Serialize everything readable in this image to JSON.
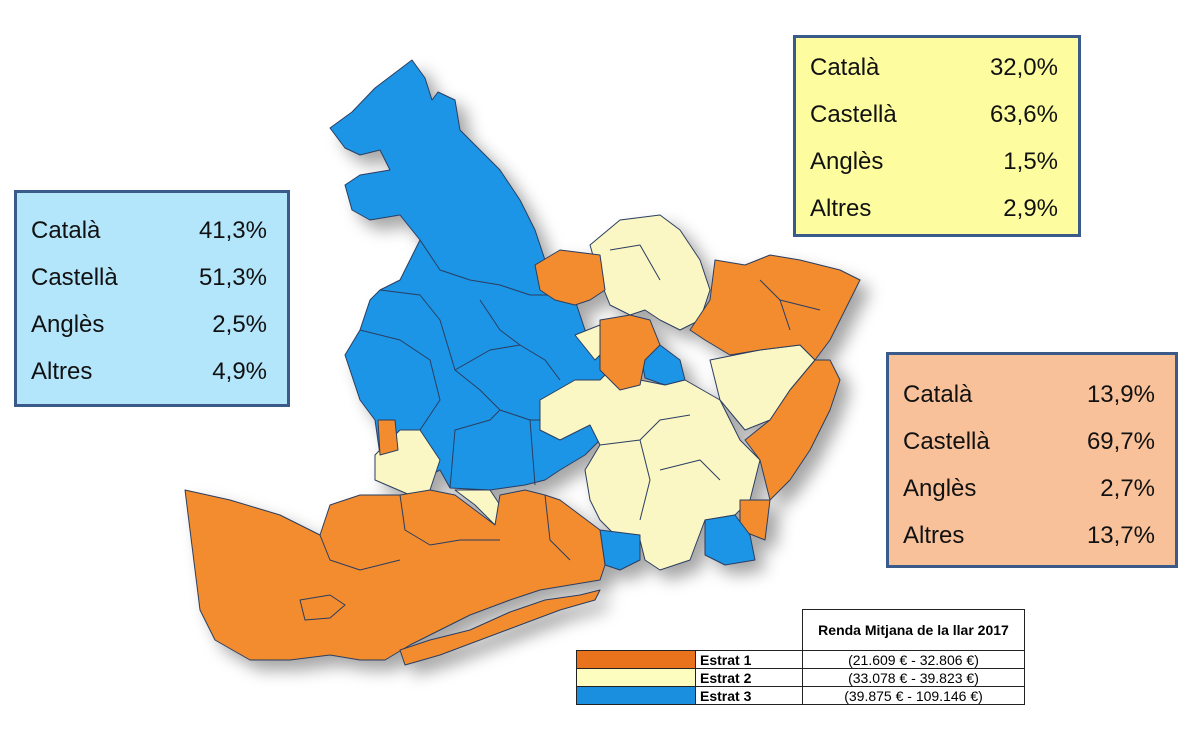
{
  "boxes": {
    "blue": [
      {
        "label": "Català",
        "value": "41,3%"
      },
      {
        "label": "Castellà",
        "value": "51,3%"
      },
      {
        "label": "Anglès",
        "value": "2,5%"
      },
      {
        "label": "Altres",
        "value": "4,9%"
      }
    ],
    "yellow": [
      {
        "label": "Català",
        "value": "32,0%"
      },
      {
        "label": "Castellà",
        "value": "63,6%"
      },
      {
        "label": "Anglès",
        "value": "1,5%"
      },
      {
        "label": "Altres",
        "value": "2,9%"
      }
    ],
    "orange": [
      {
        "label": "Català",
        "value": "13,9%"
      },
      {
        "label": "Castellà",
        "value": "69,7%"
      },
      {
        "label": "Anglès",
        "value": "2,7%"
      },
      {
        "label": "Altres",
        "value": "13,7%"
      }
    ]
  },
  "legend": {
    "title": "Renda Mitjana de la llar 2017",
    "rows": [
      {
        "label": "Estrat 1",
        "range": "(21.609 € - 32.806 €)",
        "color": "#e8731c"
      },
      {
        "label": "Estrat 2",
        "range": "(33.078 € - 39.823 €)",
        "color": "#fdfdc0"
      },
      {
        "label": "Estrat 3",
        "range": "(39.875 € - 109.146 €)",
        "color": "#1a8fe0"
      }
    ]
  },
  "colors": {
    "orange": "#f28c2e",
    "yellow": "#fbf7c4",
    "blue": "#1a95e6",
    "border": "#2c3e60"
  }
}
